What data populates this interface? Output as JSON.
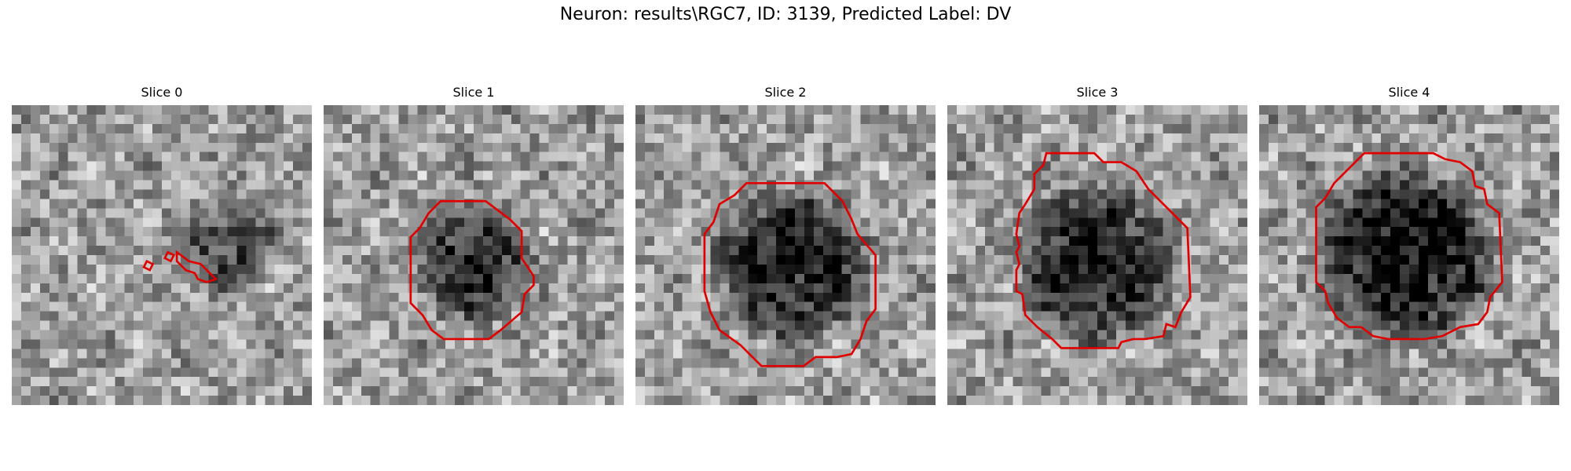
{
  "figure": {
    "title": "Neuron: results\\RGC7, ID: 3139, Predicted Label: DV"
  },
  "panels": [
    {
      "label": "Slice 0",
      "seed": 11,
      "dark_center": [
        0.72,
        0.47
      ],
      "dark_radius": 0.18,
      "dark_strength": 0.35,
      "contours": [
        [
          [
            0.55,
            0.49
          ],
          [
            0.59,
            0.52
          ],
          [
            0.63,
            0.53
          ],
          [
            0.66,
            0.56
          ],
          [
            0.68,
            0.58
          ],
          [
            0.65,
            0.59
          ],
          [
            0.62,
            0.58
          ],
          [
            0.61,
            0.56
          ],
          [
            0.58,
            0.55
          ],
          [
            0.55,
            0.52
          ]
        ],
        [
          [
            0.52,
            0.49
          ],
          [
            0.54,
            0.5
          ],
          [
            0.53,
            0.52
          ],
          [
            0.51,
            0.51
          ]
        ],
        [
          [
            0.45,
            0.52
          ],
          [
            0.47,
            0.53
          ],
          [
            0.46,
            0.55
          ],
          [
            0.44,
            0.54
          ]
        ]
      ]
    },
    {
      "label": "Slice 1",
      "seed": 23,
      "dark_center": [
        0.5,
        0.53
      ],
      "dark_radius": 0.22,
      "dark_strength": 0.45,
      "contours": [
        [
          [
            0.39,
            0.32
          ],
          [
            0.54,
            0.32
          ],
          [
            0.62,
            0.38
          ],
          [
            0.66,
            0.42
          ],
          [
            0.66,
            0.51
          ],
          [
            0.7,
            0.57
          ],
          [
            0.7,
            0.6
          ],
          [
            0.67,
            0.63
          ],
          [
            0.66,
            0.69
          ],
          [
            0.59,
            0.75
          ],
          [
            0.55,
            0.78
          ],
          [
            0.51,
            0.78
          ],
          [
            0.4,
            0.78
          ],
          [
            0.36,
            0.75
          ],
          [
            0.33,
            0.7
          ],
          [
            0.29,
            0.66
          ],
          [
            0.29,
            0.44
          ],
          [
            0.32,
            0.41
          ],
          [
            0.35,
            0.36
          ]
        ]
      ]
    },
    {
      "label": "Slice 2",
      "seed": 37,
      "dark_center": [
        0.52,
        0.53
      ],
      "dark_radius": 0.29,
      "dark_strength": 0.5,
      "contours": [
        [
          [
            0.37,
            0.26
          ],
          [
            0.63,
            0.26
          ],
          [
            0.69,
            0.32
          ],
          [
            0.72,
            0.38
          ],
          [
            0.74,
            0.43
          ],
          [
            0.8,
            0.5
          ],
          [
            0.8,
            0.68
          ],
          [
            0.77,
            0.72
          ],
          [
            0.75,
            0.78
          ],
          [
            0.72,
            0.83
          ],
          [
            0.67,
            0.84
          ],
          [
            0.6,
            0.84
          ],
          [
            0.56,
            0.87
          ],
          [
            0.52,
            0.87
          ],
          [
            0.42,
            0.87
          ],
          [
            0.38,
            0.83
          ],
          [
            0.35,
            0.8
          ],
          [
            0.28,
            0.75
          ],
          [
            0.25,
            0.69
          ],
          [
            0.23,
            0.62
          ],
          [
            0.23,
            0.43
          ],
          [
            0.26,
            0.39
          ],
          [
            0.28,
            0.33
          ],
          [
            0.33,
            0.3
          ]
        ]
      ]
    },
    {
      "label": "Slice 3",
      "seed": 51,
      "dark_center": [
        0.5,
        0.53
      ],
      "dark_radius": 0.3,
      "dark_strength": 0.5,
      "contours": [
        [
          [
            0.33,
            0.16
          ],
          [
            0.49,
            0.16
          ],
          [
            0.52,
            0.19
          ],
          [
            0.58,
            0.19
          ],
          [
            0.63,
            0.22
          ],
          [
            0.67,
            0.28
          ],
          [
            0.73,
            0.34
          ],
          [
            0.8,
            0.41
          ],
          [
            0.81,
            0.64
          ],
          [
            0.78,
            0.69
          ],
          [
            0.76,
            0.74
          ],
          [
            0.73,
            0.73
          ],
          [
            0.72,
            0.77
          ],
          [
            0.66,
            0.78
          ],
          [
            0.62,
            0.78
          ],
          [
            0.58,
            0.79
          ],
          [
            0.57,
            0.81
          ],
          [
            0.44,
            0.81
          ],
          [
            0.38,
            0.81
          ],
          [
            0.35,
            0.78
          ],
          [
            0.3,
            0.74
          ],
          [
            0.26,
            0.7
          ],
          [
            0.25,
            0.63
          ],
          [
            0.23,
            0.62
          ],
          [
            0.23,
            0.55
          ],
          [
            0.24,
            0.53
          ],
          [
            0.23,
            0.49
          ],
          [
            0.24,
            0.47
          ],
          [
            0.23,
            0.43
          ],
          [
            0.24,
            0.36
          ],
          [
            0.26,
            0.33
          ],
          [
            0.29,
            0.28
          ],
          [
            0.29,
            0.23
          ],
          [
            0.32,
            0.2
          ]
        ]
      ]
    },
    {
      "label": "Slice 4",
      "seed": 67,
      "dark_center": [
        0.49,
        0.5
      ],
      "dark_radius": 0.33,
      "dark_strength": 0.55,
      "contours": [
        [
          [
            0.35,
            0.16
          ],
          [
            0.58,
            0.16
          ],
          [
            0.62,
            0.18
          ],
          [
            0.67,
            0.19
          ],
          [
            0.71,
            0.22
          ],
          [
            0.72,
            0.27
          ],
          [
            0.75,
            0.28
          ],
          [
            0.76,
            0.33
          ],
          [
            0.8,
            0.36
          ],
          [
            0.81,
            0.59
          ],
          [
            0.77,
            0.64
          ],
          [
            0.76,
            0.69
          ],
          [
            0.73,
            0.73
          ],
          [
            0.67,
            0.74
          ],
          [
            0.61,
            0.77
          ],
          [
            0.55,
            0.78
          ],
          [
            0.43,
            0.78
          ],
          [
            0.38,
            0.77
          ],
          [
            0.34,
            0.74
          ],
          [
            0.3,
            0.74
          ],
          [
            0.26,
            0.71
          ],
          [
            0.23,
            0.66
          ],
          [
            0.22,
            0.62
          ],
          [
            0.19,
            0.59
          ],
          [
            0.19,
            0.34
          ],
          [
            0.22,
            0.31
          ],
          [
            0.25,
            0.26
          ],
          [
            0.29,
            0.22
          ],
          [
            0.33,
            0.18
          ]
        ]
      ]
    }
  ]
}
